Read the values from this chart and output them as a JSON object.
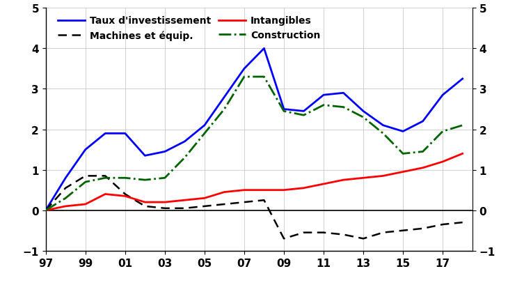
{
  "years": [
    1997,
    1998,
    1999,
    2000,
    2001,
    2002,
    2003,
    2004,
    2005,
    2006,
    2007,
    2008,
    2009,
    2010,
    2011,
    2012,
    2013,
    2014,
    2015,
    2016,
    2017,
    2018
  ],
  "taux_investissement": [
    0.0,
    0.8,
    1.5,
    1.9,
    1.9,
    1.35,
    1.45,
    1.7,
    2.1,
    2.8,
    3.5,
    4.0,
    2.5,
    2.45,
    2.85,
    2.9,
    2.45,
    2.1,
    1.95,
    2.2,
    2.85,
    3.25
  ],
  "machines_equipement": [
    0.0,
    0.55,
    0.85,
    0.85,
    0.4,
    0.1,
    0.05,
    0.05,
    0.1,
    0.15,
    0.2,
    0.25,
    -0.7,
    -0.55,
    -0.55,
    -0.6,
    -0.7,
    -0.55,
    -0.5,
    -0.45,
    -0.35,
    -0.3
  ],
  "intangibles": [
    0.0,
    0.1,
    0.15,
    0.4,
    0.35,
    0.2,
    0.2,
    0.25,
    0.3,
    0.45,
    0.5,
    0.5,
    0.5,
    0.55,
    0.65,
    0.75,
    0.8,
    0.85,
    0.95,
    1.05,
    1.2,
    1.4
  ],
  "construction": [
    0.0,
    0.3,
    0.7,
    0.8,
    0.8,
    0.75,
    0.8,
    1.3,
    1.9,
    2.5,
    3.3,
    3.3,
    2.45,
    2.35,
    2.6,
    2.55,
    2.3,
    1.9,
    1.4,
    1.45,
    1.95,
    2.1
  ],
  "taux_color": "#0000FF",
  "machines_color": "#000000",
  "intangibles_color": "#FF0000",
  "construction_color": "#006400",
  "ylim": [
    -1,
    5
  ],
  "yticks": [
    -1,
    0,
    1,
    2,
    3,
    4,
    5
  ],
  "legend_taux": "Taux d'investissement",
  "legend_machines": "Machines et équip.",
  "legend_intangibles": "Intangibles",
  "legend_construction": "Construction",
  "background_color": "#FFFFFF",
  "grid_color": "#BBBBBB"
}
